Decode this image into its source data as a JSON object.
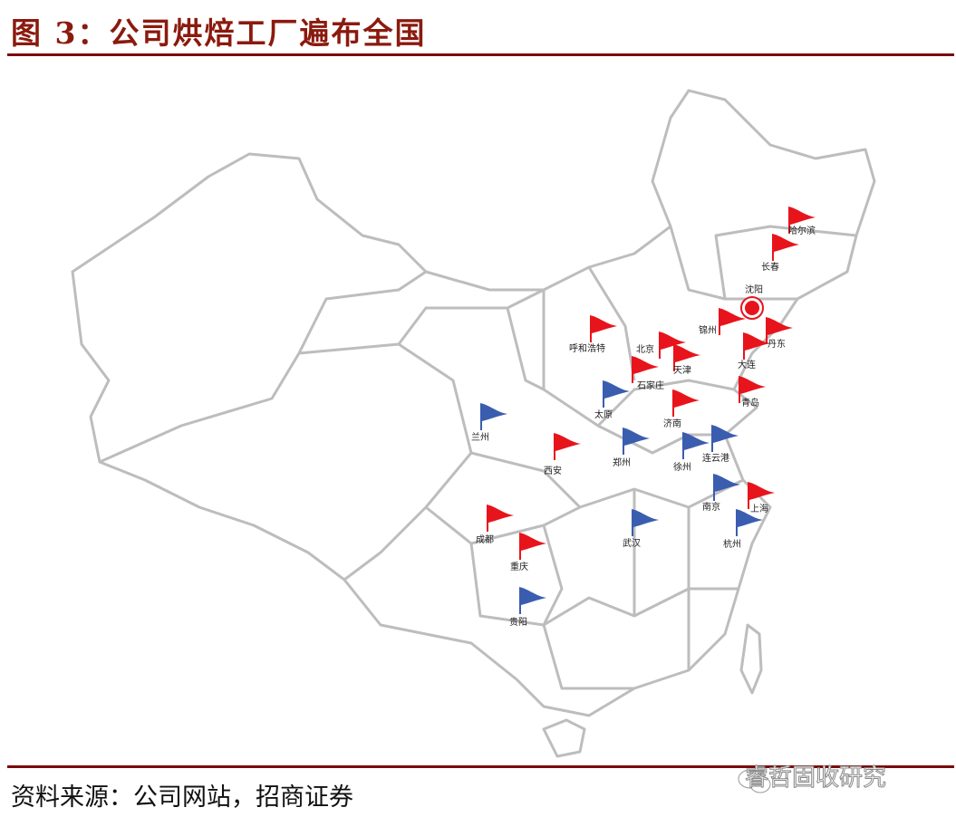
{
  "header": {
    "title": "图 3：公司烘焙工厂遍布全国"
  },
  "colors": {
    "accent": "#7a0a0a",
    "title": "#8b1a0e",
    "red_flag": "#e8141c",
    "blue_flag": "#3a5db0",
    "border": "#bdbdbd"
  },
  "map": {
    "marker_icon": "flag-icon",
    "hq": {
      "name": "沈阳",
      "icon": "circle-marker-icon",
      "color": "#e8141c"
    },
    "cities": [
      {
        "name": "哈尔滨",
        "flag": "red"
      },
      {
        "name": "长春",
        "flag": "red"
      },
      {
        "name": "锦州",
        "flag": "red"
      },
      {
        "name": "丹东",
        "flag": "red"
      },
      {
        "name": "大连",
        "flag": "red"
      },
      {
        "name": "呼和浩特",
        "flag": "red"
      },
      {
        "name": "北京",
        "flag": "red"
      },
      {
        "name": "天津",
        "flag": "red"
      },
      {
        "name": "石家庄",
        "flag": "red"
      },
      {
        "name": "太原",
        "flag": "blue"
      },
      {
        "name": "济南",
        "flag": "red"
      },
      {
        "name": "青岛",
        "flag": "red"
      },
      {
        "name": "兰州",
        "flag": "blue"
      },
      {
        "name": "西安",
        "flag": "red"
      },
      {
        "name": "郑州",
        "flag": "blue"
      },
      {
        "name": "徐州",
        "flag": "blue"
      },
      {
        "name": "连云港",
        "flag": "blue"
      },
      {
        "name": "南京",
        "flag": "blue"
      },
      {
        "name": "上海",
        "flag": "red"
      },
      {
        "name": "杭州",
        "flag": "blue"
      },
      {
        "name": "武汉",
        "flag": "blue"
      },
      {
        "name": "成都",
        "flag": "red"
      },
      {
        "name": "重庆",
        "flag": "red"
      },
      {
        "name": "贵阳",
        "flag": "blue"
      }
    ]
  },
  "footer": {
    "source": "资料来源：公司网站，招商证券",
    "watermark": "睿哲固收研究"
  }
}
